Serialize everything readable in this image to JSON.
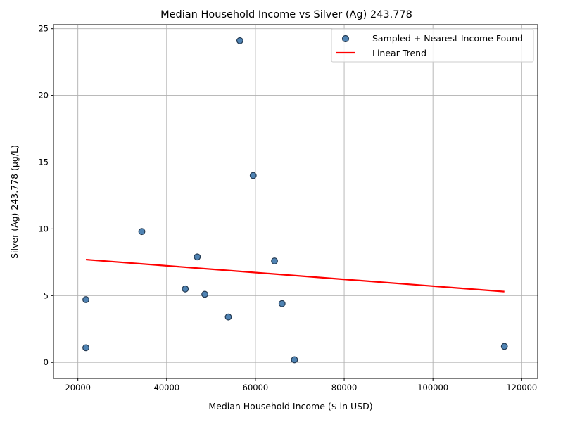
{
  "chart_data": {
    "type": "scatter",
    "title": "Median Household Income vs Silver (Ag) 243.778",
    "xlabel": "Median Household Income ($ in USD)",
    "ylabel": "Silver (Ag) 243.778 (µg/L)",
    "xlim": [
      14500,
      123600
    ],
    "ylim": [
      -1.2,
      25.3
    ],
    "xticks": [
      20000,
      40000,
      60000,
      80000,
      100000,
      120000
    ],
    "yticks": [
      0,
      5,
      10,
      15,
      20,
      25
    ],
    "grid": true,
    "legend_position": "top-right",
    "colors": {
      "point_fill": "#4f83b3",
      "point_edge": "#243a52",
      "trend": "#ff0000"
    },
    "series": [
      {
        "name": "Sampled + Nearest Income Found",
        "kind": "scatter",
        "points": [
          {
            "x": 21800,
            "y": 4.7
          },
          {
            "x": 21800,
            "y": 1.1
          },
          {
            "x": 34400,
            "y": 9.8
          },
          {
            "x": 44200,
            "y": 5.5
          },
          {
            "x": 46900,
            "y": 7.9
          },
          {
            "x": 48600,
            "y": 5.1
          },
          {
            "x": 53900,
            "y": 3.4
          },
          {
            "x": 56500,
            "y": 24.1
          },
          {
            "x": 59500,
            "y": 14.0
          },
          {
            "x": 64300,
            "y": 7.6
          },
          {
            "x": 66000,
            "y": 4.4
          },
          {
            "x": 68800,
            "y": 0.2
          },
          {
            "x": 116100,
            "y": 1.2
          }
        ]
      },
      {
        "name": "Linear Trend",
        "kind": "line",
        "points": [
          {
            "x": 21800,
            "y": 7.7
          },
          {
            "x": 116100,
            "y": 5.3
          }
        ]
      }
    ]
  }
}
